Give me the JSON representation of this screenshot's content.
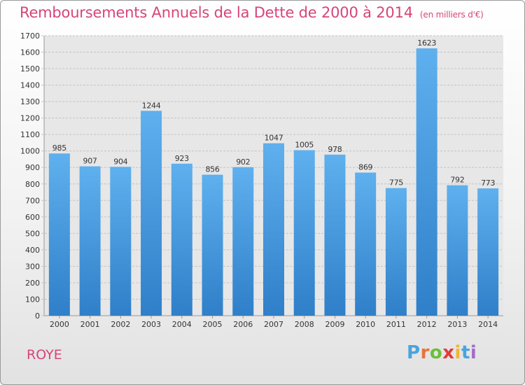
{
  "chart_data": {
    "type": "bar",
    "title": "Remboursements Annuels de la Dette de 2000 à 2014",
    "subtitle": "(en milliers d'€)",
    "categories": [
      "2000",
      "2001",
      "2002",
      "2003",
      "2004",
      "2005",
      "2006",
      "2007",
      "2008",
      "2009",
      "2010",
      "2011",
      "2012",
      "2013",
      "2014"
    ],
    "values": [
      985,
      907,
      904,
      1244,
      923,
      856,
      902,
      1047,
      1005,
      978,
      869,
      775,
      1623,
      792,
      773
    ],
    "ylim": [
      0,
      1700
    ],
    "yticks": [
      0,
      100,
      200,
      300,
      400,
      500,
      600,
      700,
      800,
      900,
      1000,
      1100,
      1200,
      1300,
      1400,
      1500,
      1600,
      1700
    ],
    "grid": true,
    "bar_color": "#3d8fd8"
  },
  "footer": {
    "city": "ROYE",
    "logo": [
      "P",
      "r",
      "o",
      "x",
      "i",
      "t",
      "i"
    ],
    "logo_colors": [
      "#4aa3df",
      "#e8733a",
      "#6cbf3a",
      "#e23b3b",
      "#f2b531",
      "#4aa3df",
      "#a66cc8"
    ]
  }
}
